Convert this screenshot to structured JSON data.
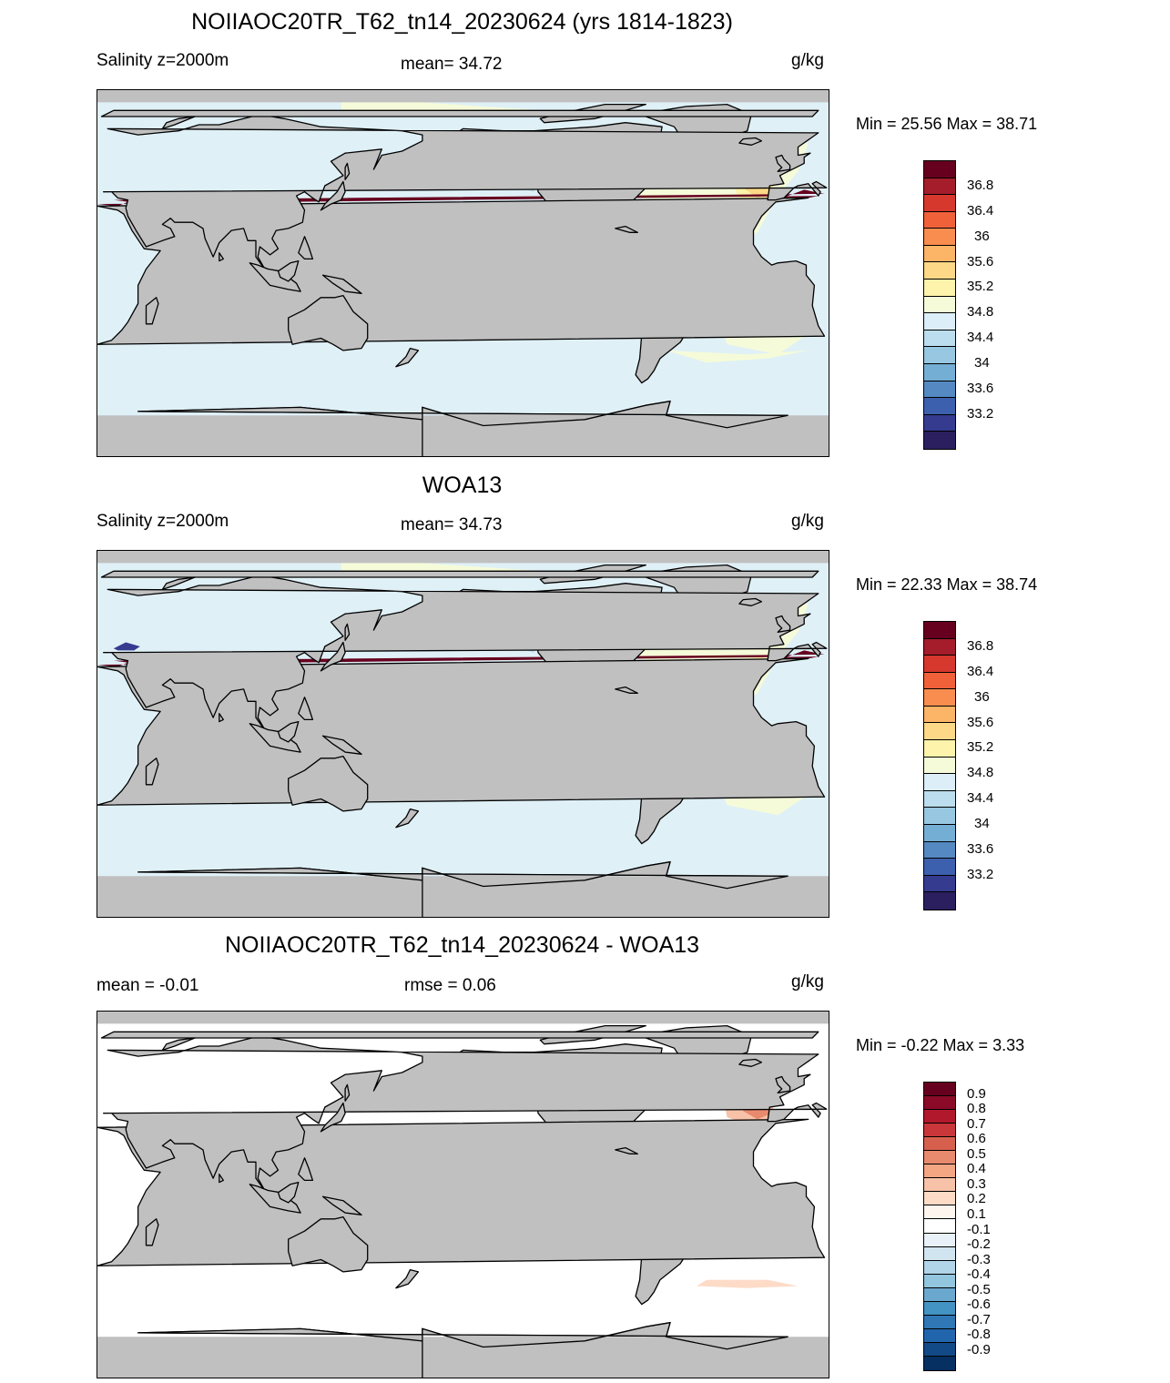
{
  "panel1": {
    "title": "NOIIAOC20TR_T62_tn14_20230624 (yrs 1814-1823)",
    "left_label": "Salinity z=2000m",
    "center_label": "mean=  34.72",
    "units": "g/kg",
    "minmax": "Min =  25.56 Max =  38.71"
  },
  "panel2": {
    "title": "WOA13",
    "left_label": "Salinity z=2000m",
    "center_label": "mean=  34.73",
    "units": "g/kg",
    "minmax": "Min =  22.33 Max =  38.74"
  },
  "panel3": {
    "title": "NOIIAOC20TR_T62_tn14_20230624 - WOA13",
    "left_label": "mean =  -0.01",
    "center_label": "rmse =   0.06",
    "units": "g/kg",
    "minmax": "Min =  -0.22 Max =   3.33"
  },
  "colorbar_abs": {
    "labels": [
      "36.8",
      "36.4",
      "36",
      "35.6",
      "35.2",
      "34.8",
      "34.4",
      "34",
      "33.6",
      "33.2"
    ],
    "colors": [
      "#67001f",
      "#a51c2a",
      "#d6382d",
      "#f0613a",
      "#f88d4f",
      "#fcb466",
      "#fdd887",
      "#fdf3aa",
      "#f5fbd9",
      "#dceef7",
      "#bcdded",
      "#98c8e1",
      "#74aed4",
      "#5589c2",
      "#3c60ad",
      "#353b8f",
      "#2c1f5f"
    ]
  },
  "colorbar_diff": {
    "labels": [
      "0.9",
      "0.8",
      "0.7",
      "0.6",
      "0.5",
      "0.4",
      "0.3",
      "0.2",
      "0.1",
      "-0.1",
      "-0.2",
      "-0.3",
      "-0.4",
      "-0.5",
      "-0.6",
      "-0.7",
      "-0.8",
      "-0.9"
    ],
    "colors": [
      "#67001f",
      "#8b0a28",
      "#b2182b",
      "#c9373a",
      "#d6604d",
      "#e88a6e",
      "#f4a582",
      "#f8c2a8",
      "#fddbc7",
      "#fff5ef",
      "#ffffff",
      "#e8f1f8",
      "#d1e5f0",
      "#b2d4e8",
      "#92c5de",
      "#6aa8cf",
      "#4393c3",
      "#2f77b5",
      "#2166ac",
      "#124a87",
      "#053061"
    ]
  },
  "map_colors": {
    "land": "#c0c0c0",
    "ocean_abs": "#dff0f7",
    "ocean_diff": "#ffffff",
    "coast": "#000000"
  }
}
